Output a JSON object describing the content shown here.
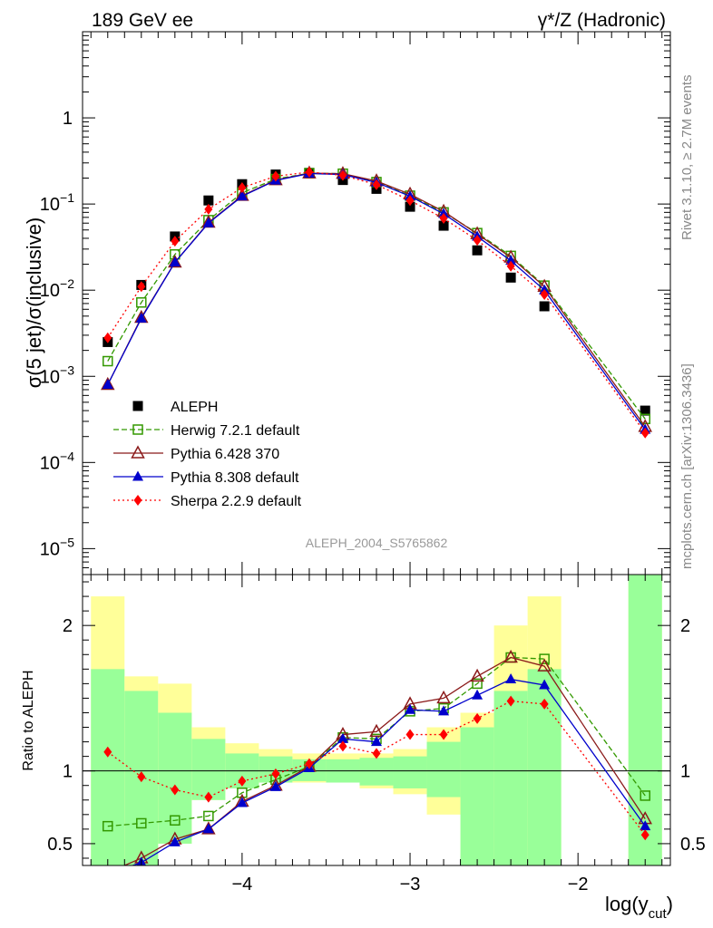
{
  "header": {
    "left_label": "189 GeV ee",
    "right_label": "γ*/Z (Hadronic)"
  },
  "side_text": {
    "rivet": "Rivet 3.1.10, ≥ 2.7M events",
    "mcplots": "mcplots.cern.ch [arXiv:1306.3436]"
  },
  "watermark": "ALEPH_2004_S5765862",
  "colors": {
    "data": "#000000",
    "herwig": "#339900",
    "pythia6": "#8b1a1a",
    "pythia8": "#0000cc",
    "sherpa": "#ff0000",
    "band_inner": "#99ff99",
    "band_outer": "#ffff99"
  },
  "chart_data": [
    {
      "type": "line",
      "panel": "main",
      "ylabel": "σ(5 jet)/σ(inclusive)",
      "yscale": "log",
      "ylim": [
        5e-06,
        10
      ],
      "xlim": [
        -4.95,
        -1.45
      ],
      "yticks": [
        "10−5",
        "10−4",
        "10−3",
        "10−2",
        "10−1",
        "1"
      ],
      "legend_position": "lower-left",
      "series": [
        {
          "name": "ALEPH",
          "style": "data",
          "x": [
            -4.8,
            -4.6,
            -4.4,
            -4.2,
            -4.0,
            -3.8,
            -3.6,
            -3.4,
            -3.2,
            -3.0,
            -2.8,
            -2.6,
            -2.4,
            -2.2,
            -1.6
          ],
          "y": [
            0.0025,
            0.0115,
            0.042,
            0.11,
            0.17,
            0.22,
            0.23,
            0.19,
            0.15,
            0.093,
            0.056,
            0.029,
            0.014,
            0.0065,
            0.0004
          ]
        },
        {
          "name": "Herwig 7.2.1 default",
          "style": "herwig",
          "x": [
            -4.8,
            -4.6,
            -4.4,
            -4.2,
            -4.0,
            -3.8,
            -3.6,
            -3.4,
            -3.2,
            -3.0,
            -2.8,
            -2.6,
            -2.4,
            -2.2,
            -1.6
          ],
          "y": [
            0.0015,
            0.0072,
            0.026,
            0.065,
            0.135,
            0.195,
            0.228,
            0.225,
            0.18,
            0.125,
            0.08,
            0.046,
            0.025,
            0.0113,
            0.00032
          ]
        },
        {
          "name": "Pythia 6.428 370",
          "style": "pythia6",
          "x": [
            -4.8,
            -4.6,
            -4.4,
            -4.2,
            -4.0,
            -3.8,
            -3.6,
            -3.4,
            -3.2,
            -3.0,
            -2.8,
            -2.6,
            -2.4,
            -2.2,
            -1.6
          ],
          "y": [
            0.0008,
            0.0048,
            0.021,
            0.061,
            0.125,
            0.19,
            0.228,
            0.225,
            0.185,
            0.13,
            0.082,
            0.045,
            0.024,
            0.011,
            0.00026
          ]
        },
        {
          "name": "Pythia 8.308 default",
          "style": "pythia8",
          "x": [
            -4.8,
            -4.6,
            -4.4,
            -4.2,
            -4.0,
            -3.8,
            -3.6,
            -3.4,
            -3.2,
            -3.0,
            -2.8,
            -2.6,
            -2.4,
            -2.2,
            -1.6
          ],
          "y": [
            0.0008,
            0.0047,
            0.021,
            0.06,
            0.123,
            0.188,
            0.226,
            0.22,
            0.178,
            0.123,
            0.077,
            0.042,
            0.022,
            0.01,
            0.00024
          ]
        },
        {
          "name": "Sherpa 2.2.9 default",
          "style": "sherpa",
          "x": [
            -4.8,
            -4.6,
            -4.4,
            -4.2,
            -4.0,
            -3.8,
            -3.6,
            -3.4,
            -3.2,
            -3.0,
            -2.8,
            -2.6,
            -2.4,
            -2.2,
            -1.6
          ],
          "y": [
            0.0028,
            0.011,
            0.037,
            0.087,
            0.155,
            0.21,
            0.235,
            0.215,
            0.168,
            0.11,
            0.068,
            0.038,
            0.019,
            0.0089,
            0.00022
          ]
        }
      ]
    },
    {
      "type": "line",
      "panel": "ratio",
      "ylabel": "Ratio to ALEPH",
      "xlabel": "log(ycut)",
      "xlabel_main": "log(y",
      "xlabel_sub": "cut",
      "xlabel_close": ")",
      "ylim": [
        0.35,
        2.35
      ],
      "xlim": [
        -4.95,
        -1.45
      ],
      "xticks": [
        "−4",
        "−3",
        "−2"
      ],
      "yticks": [
        "0.5",
        "1",
        "2"
      ],
      "uncertainty_bands": [
        {
          "x0": -4.9,
          "x1": -4.7,
          "inner": [
            0.35,
            1.7
          ],
          "outer": [
            0.35,
            2.2
          ]
        },
        {
          "x0": -4.7,
          "x1": -4.5,
          "inner": [
            0.35,
            1.55
          ],
          "outer": [
            0.35,
            1.65
          ]
        },
        {
          "x0": -4.5,
          "x1": -4.3,
          "inner": [
            0.5,
            1.4
          ],
          "outer": [
            0.5,
            1.6
          ]
        },
        {
          "x0": -4.3,
          "x1": -4.1,
          "inner": [
            0.8,
            1.22
          ],
          "outer": [
            0.8,
            1.3
          ]
        },
        {
          "x0": -4.1,
          "x1": -3.9,
          "inner": [
            0.88,
            1.12
          ],
          "outer": [
            0.88,
            1.19
          ]
        },
        {
          "x0": -3.9,
          "x1": -3.7,
          "inner": [
            0.92,
            1.1
          ],
          "outer": [
            0.92,
            1.15
          ]
        },
        {
          "x0": -3.7,
          "x1": -3.5,
          "inner": [
            0.93,
            1.08
          ],
          "outer": [
            0.92,
            1.12
          ]
        },
        {
          "x0": -3.5,
          "x1": -3.3,
          "inner": [
            0.92,
            1.08
          ],
          "outer": [
            0.92,
            1.12
          ]
        },
        {
          "x0": -3.3,
          "x1": -3.1,
          "inner": [
            0.9,
            1.09
          ],
          "outer": [
            0.88,
            1.12
          ]
        },
        {
          "x0": -3.1,
          "x1": -2.9,
          "inner": [
            0.88,
            1.1
          ],
          "outer": [
            0.84,
            1.15
          ]
        },
        {
          "x0": -2.9,
          "x1": -2.7,
          "inner": [
            0.82,
            1.2
          ],
          "outer": [
            0.7,
            1.3
          ]
        },
        {
          "x0": -2.7,
          "x1": -2.5,
          "inner": [
            0.35,
            1.3
          ],
          "outer": [
            0.35,
            1.4
          ]
        },
        {
          "x0": -2.5,
          "x1": -2.3,
          "inner": [
            0.35,
            1.55
          ],
          "outer": [
            0.35,
            2.0
          ]
        },
        {
          "x0": -2.3,
          "x1": -2.1,
          "inner": [
            0.35,
            1.7
          ],
          "outer": [
            0.35,
            2.2
          ]
        },
        {
          "x0": -1.7,
          "x1": -1.5,
          "inner": [
            0.35,
            2.35
          ],
          "outer": [
            0.35,
            2.35
          ]
        }
      ],
      "series": [
        {
          "name": "Herwig 7.2.1 default",
          "style": "herwig",
          "x": [
            -4.8,
            -4.6,
            -4.4,
            -4.2,
            -4.0,
            -3.8,
            -3.6,
            -3.4,
            -3.2,
            -3.0,
            -2.8,
            -2.6,
            -2.4,
            -2.2,
            -1.6
          ],
          "y": [
            0.62,
            0.64,
            0.66,
            0.69,
            0.85,
            0.94,
            1.03,
            1.23,
            1.22,
            1.41,
            1.43,
            1.6,
            1.78,
            1.77,
            0.83
          ]
        },
        {
          "name": "Pythia 6.428 370",
          "style": "pythia6",
          "x": [
            -4.8,
            -4.6,
            -4.4,
            -4.2,
            -4.0,
            -3.8,
            -3.6,
            -3.4,
            -3.2,
            -3.0,
            -2.8,
            -2.6,
            -2.4,
            -2.2,
            -1.6
          ],
          "y": [
            0.3,
            0.4,
            0.53,
            0.6,
            0.79,
            0.9,
            1.03,
            1.25,
            1.27,
            1.46,
            1.5,
            1.65,
            1.78,
            1.72,
            0.67
          ]
        },
        {
          "name": "Pythia 8.308 default",
          "style": "pythia8",
          "x": [
            -4.8,
            -4.6,
            -4.4,
            -4.2,
            -4.0,
            -3.8,
            -3.6,
            -3.4,
            -3.2,
            -3.0,
            -2.8,
            -2.6,
            -2.4,
            -2.2,
            -1.6
          ],
          "y": [
            0.29,
            0.37,
            0.51,
            0.6,
            0.78,
            0.89,
            1.02,
            1.22,
            1.2,
            1.42,
            1.41,
            1.52,
            1.63,
            1.59,
            0.62
          ]
        },
        {
          "name": "Sherpa 2.2.9 default",
          "style": "sherpa",
          "x": [
            -4.8,
            -4.6,
            -4.4,
            -4.2,
            -4.0,
            -3.8,
            -3.6,
            -3.4,
            -3.2,
            -3.0,
            -2.8,
            -2.6,
            -2.4,
            -2.2,
            -1.6
          ],
          "y": [
            1.13,
            0.96,
            0.87,
            0.82,
            0.93,
            0.98,
            1.05,
            1.17,
            1.12,
            1.25,
            1.25,
            1.36,
            1.48,
            1.46,
            0.56
          ]
        }
      ]
    }
  ]
}
